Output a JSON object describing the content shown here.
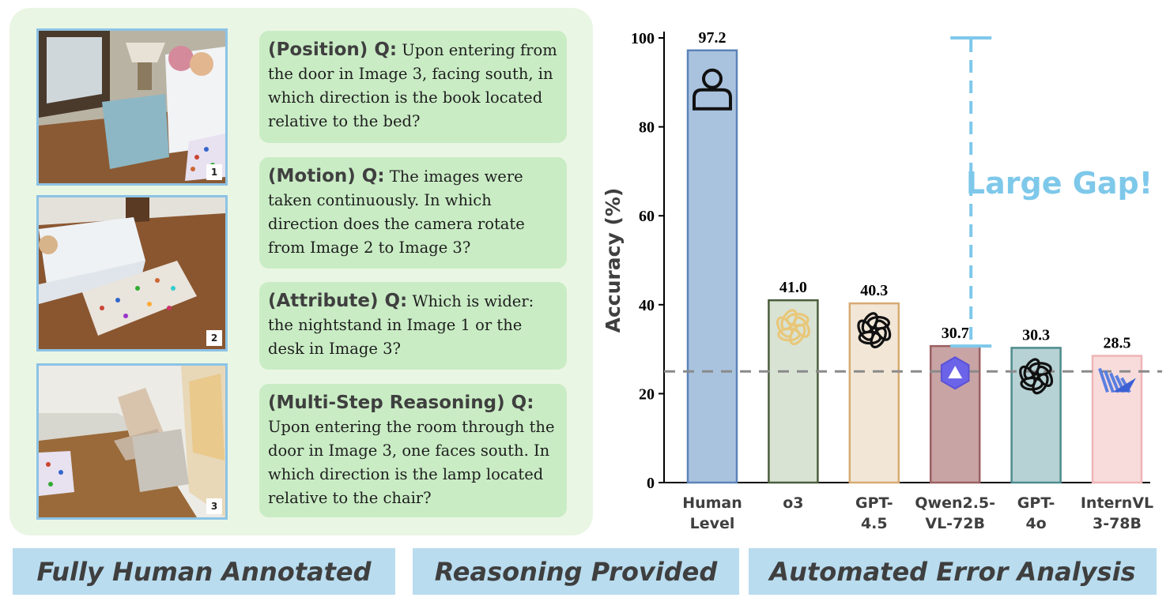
{
  "questions": [
    {
      "tag": "(Position) Q:",
      "text": "Upon entering from the door in Image 3, facing south, in which direction is the book located relative to the bed?"
    },
    {
      "tag": "(Motion) Q:",
      "text": "The images were taken continuously. In which direction does the camera rotate from Image 2 to Image 3?"
    },
    {
      "tag": "(Attribute) Q:",
      "text": "Which is wider: the nightstand in Image 1 or the desk in Image 3?"
    },
    {
      "tag": "(Multi-Step Reasoning) Q:",
      "text": "Upon entering the room through the door in Image 3, one faces south. In which direction is the lamp located relative to the chair?"
    }
  ],
  "images": [
    {
      "number": "1"
    },
    {
      "number": "2"
    },
    {
      "number": "3"
    }
  ],
  "banners": [
    "Fully Human Annotated",
    "Reasoning Provided",
    "Automated Error Analysis"
  ],
  "chart_data": {
    "type": "bar",
    "categories": [
      [
        "Human",
        "Level"
      ],
      [
        "o3"
      ],
      [
        "GPT-",
        "4.5"
      ],
      [
        "Qwen2.5-",
        "VL-72B"
      ],
      [
        "GPT-",
        "4o"
      ],
      [
        "InternVL",
        "3-78B"
      ]
    ],
    "values": [
      97.2,
      41.0,
      40.3,
      30.7,
      30.3,
      28.5
    ],
    "value_labels": [
      "97.2",
      "41.0",
      "40.3",
      "30.7",
      "30.3",
      "28.5"
    ],
    "bar_colors": [
      {
        "fill": "#a9c3df",
        "stroke": "#5b83b8"
      },
      {
        "fill": "#d9e3d4",
        "stroke": "#4a5e3c"
      },
      {
        "fill": "#f2e6d6",
        "stroke": "#d7ab73"
      },
      {
        "fill": "#c9a4a5",
        "stroke": "#9b6062"
      },
      {
        "fill": "#b7d2d4",
        "stroke": "#4f8b8d"
      },
      {
        "fill": "#f8dcdc",
        "stroke": "#efb5b7"
      }
    ],
    "bar_icons": [
      "person-icon",
      "openai-logo-icon",
      "openai-logo-icon",
      "qwen-logo-icon",
      "openai-logo-icon",
      "internvl-logo-icon"
    ],
    "ylabel": "Accuracy (%)",
    "ylim": [
      0,
      100
    ],
    "yticks": [
      0,
      20,
      40,
      60,
      80,
      100
    ],
    "baseline": 25,
    "gap_range": [
      30.7,
      100
    ],
    "gap_label": "Large Gap!",
    "gap_color": "#7ec8ea",
    "baseline_color": "#8a8a8a"
  }
}
